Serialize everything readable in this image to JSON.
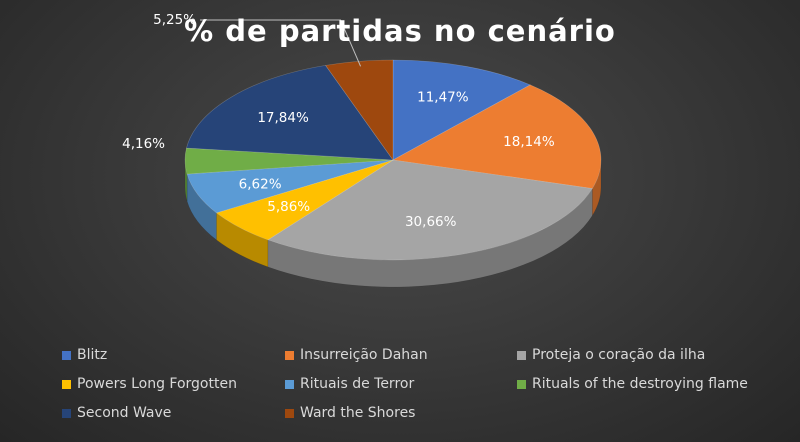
{
  "chart_data": {
    "type": "pie",
    "title": "% de partidas no cenário",
    "slices": [
      {
        "label": "Blitz",
        "value": 11.47,
        "value_label": "11,47%",
        "color": "#4472C4"
      },
      {
        "label": "Insurreição Dahan",
        "value": 18.14,
        "value_label": "18,14%",
        "color": "#ED7D31"
      },
      {
        "label": "Proteja o coração da ilha",
        "value": 30.66,
        "value_label": "30,66%",
        "color": "#A5A5A5"
      },
      {
        "label": "Powers Long Forgotten",
        "value": 5.86,
        "value_label": "5,86%",
        "color": "#FFC000"
      },
      {
        "label": "Rituais de Terror",
        "value": 6.62,
        "value_label": "6,62%",
        "color": "#5B9BD5"
      },
      {
        "label": "Rituals of the destroying flame",
        "value": 4.16,
        "value_label": "4,16%",
        "color": "#70AD47"
      },
      {
        "label": "Second Wave",
        "value": 17.84,
        "value_label": "17,84%",
        "color": "#264478"
      },
      {
        "label": "Ward the Shores",
        "value": 5.25,
        "value_label": "5,25%",
        "color": "#9E480E"
      }
    ],
    "legend_position": "bottom",
    "three_d": true
  }
}
